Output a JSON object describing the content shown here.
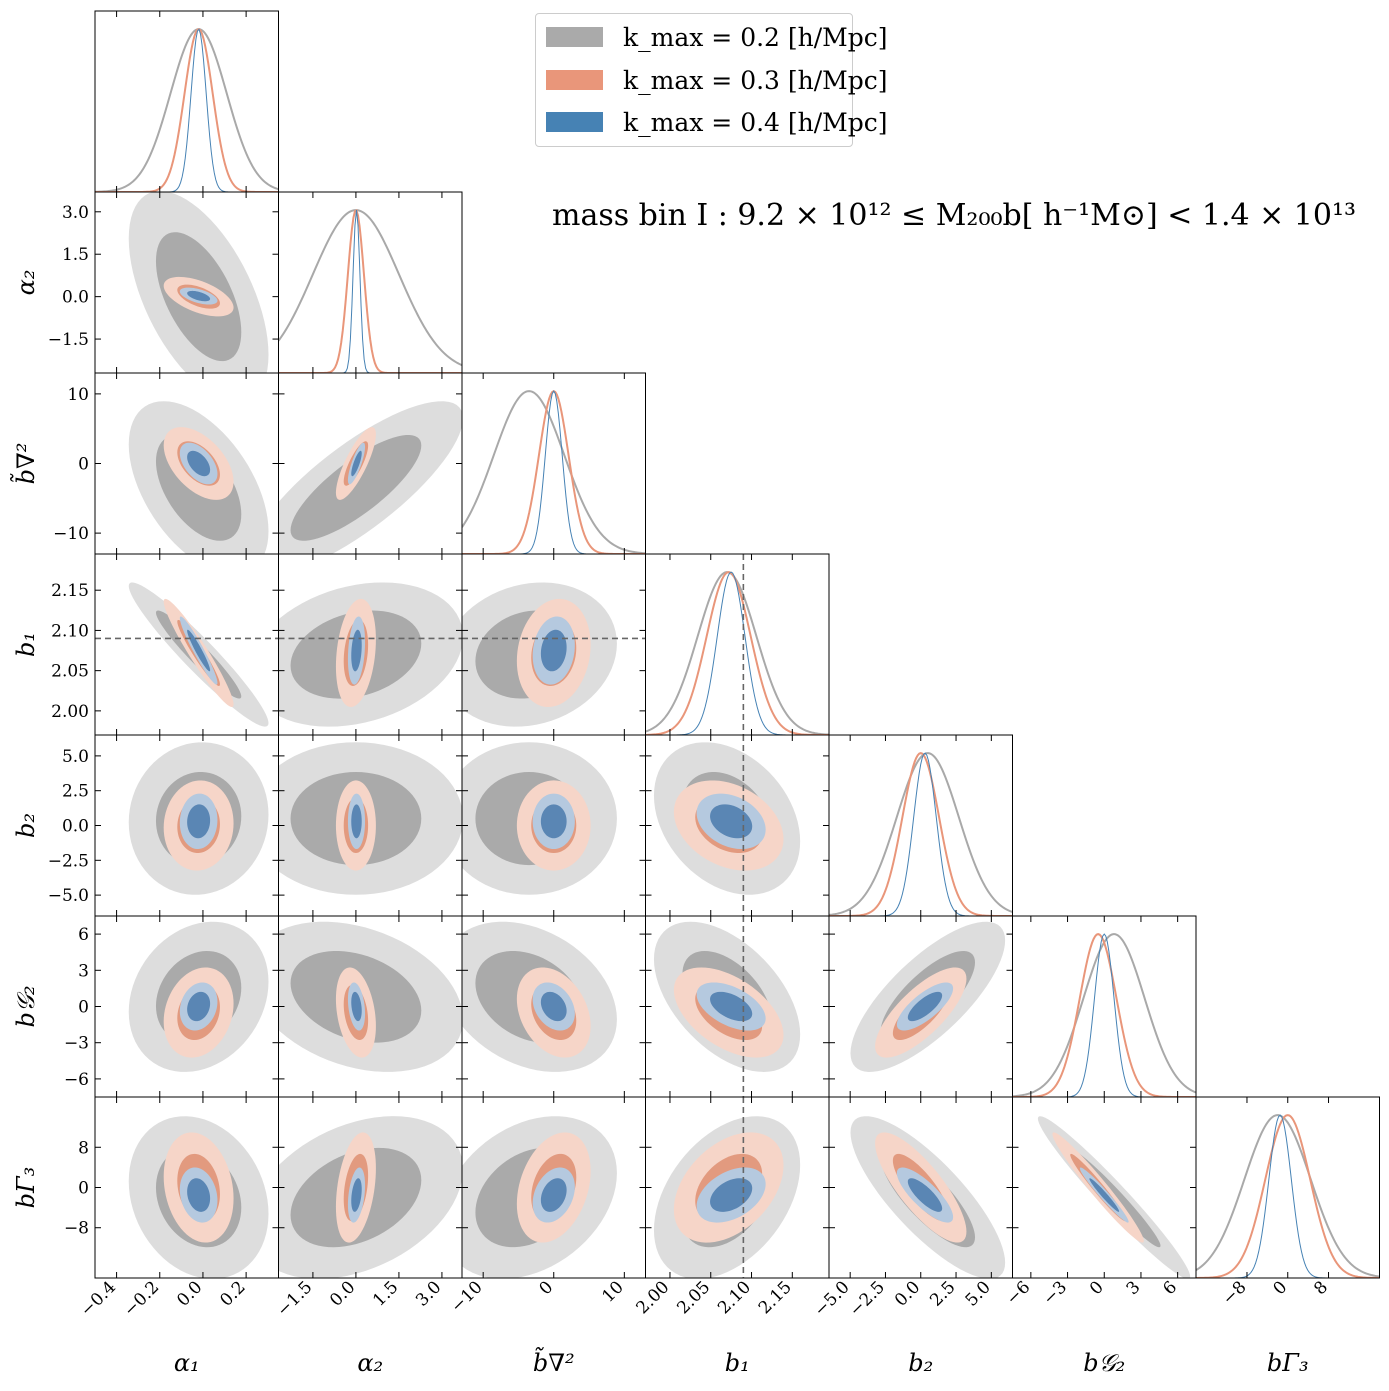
{
  "chart_data": {
    "type": "corner",
    "title": "",
    "annotation": "mass bin I : 9.2 × 10¹² ≤ M₂₀₀b[ h⁻¹M⊙] < 1.4 × 10¹³",
    "parameters": [
      {
        "key": "alpha1",
        "label": "α₁",
        "range": [
          -0.5,
          0.35
        ],
        "ticks": [
          -0.4,
          -0.2,
          0.0,
          0.2
        ],
        "tick_labels": [
          "−0.4",
          "−0.2",
          "0.0",
          "0.2"
        ],
        "truth": null
      },
      {
        "key": "alpha2",
        "label": "α₂",
        "range": [
          -2.7,
          3.7
        ],
        "ticks": [
          -1.5,
          0.0,
          1.5,
          3.0
        ],
        "tick_labels": [
          "−1.5",
          "0.0",
          "1.5",
          "3.0"
        ],
        "truth": null
      },
      {
        "key": "btilde",
        "label": "b̃∇²",
        "range": [
          -13,
          13
        ],
        "ticks": [
          -10,
          0,
          10
        ],
        "tick_labels": [
          "−10",
          "0",
          "10"
        ],
        "truth": null
      },
      {
        "key": "b1",
        "label": "b₁",
        "range": [
          1.97,
          2.195
        ],
        "ticks": [
          2.0,
          2.05,
          2.1,
          2.15
        ],
        "tick_labels": [
          "2.00",
          "2.05",
          "2.10",
          "2.15"
        ],
        "truth": 2.09
      },
      {
        "key": "b2",
        "label": "b₂",
        "range": [
          -6.5,
          6.5
        ],
        "ticks": [
          -5.0,
          -2.5,
          0.0,
          2.5,
          5.0
        ],
        "tick_labels": [
          "−5.0",
          "−2.5",
          "0.0",
          "2.5",
          "5.0"
        ],
        "truth": null
      },
      {
        "key": "bG2",
        "label": "b𝒢₂",
        "range": [
          -7.5,
          7.5
        ],
        "ticks": [
          -6,
          -3,
          0,
          3,
          6
        ],
        "tick_labels": [
          "−6",
          "−3",
          "0",
          "3",
          "6"
        ],
        "truth": null
      },
      {
        "key": "bG3",
        "label": "bΓ₃",
        "range": [
          -18,
          18
        ],
        "ticks": [
          -8,
          0,
          8
        ],
        "tick_labels": [
          "−8",
          "0",
          "8"
        ],
        "truth": null
      }
    ],
    "series": [
      {
        "name": "k_max = 0.2 [h/Mpc]",
        "color": "#a9a9a9",
        "inner_fill": "#aaaaaa",
        "outer_fill": "#dddddd",
        "mean": [
          -0.02,
          0.0,
          -3.5,
          2.07,
          0.5,
          0.8,
          -2.0
        ],
        "sigma": [
          0.13,
          1.5,
          5.0,
          0.036,
          2.2,
          2.5,
          6.5
        ]
      },
      {
        "name": "k_max = 0.3 [h/Mpc]",
        "color": "#e9967a",
        "inner_fill": "#e29a7f",
        "outer_fill": "#f6d5c8",
        "mean": [
          -0.02,
          0.0,
          0.0,
          2.072,
          0.0,
          -0.5,
          0.0
        ],
        "sigma": [
          0.065,
          0.28,
          2.1,
          0.027,
          1.3,
          1.5,
          4.4
        ]
      },
      {
        "name": "k_max = 0.4 [h/Mpc]",
        "color": "#4682b4",
        "inner_fill": "#5a86b4",
        "outer_fill": "#b5c9df",
        "mean": [
          -0.02,
          0.02,
          0.0,
          2.075,
          0.3,
          0.0,
          -1.5
        ],
        "sigma": [
          0.035,
          0.12,
          1.2,
          0.017,
          0.8,
          0.8,
          2.2
        ]
      }
    ],
    "correlations": [
      [
        1.0,
        -0.55,
        -0.5,
        -0.95,
        0.05,
        0.2,
        -0.2
      ],
      [
        -0.55,
        1.0,
        0.8,
        0.25,
        0.0,
        -0.3,
        0.35
      ],
      [
        -0.5,
        0.8,
        1.0,
        0.15,
        0.0,
        -0.3,
        0.3
      ],
      [
        -0.95,
        0.25,
        0.15,
        1.0,
        -0.3,
        -0.5,
        0.4
      ],
      [
        0.05,
        0.0,
        0.0,
        -0.3,
        1.0,
        0.75,
        -0.8
      ],
      [
        0.2,
        -0.3,
        -0.3,
        -0.5,
        0.75,
        1.0,
        -0.97
      ],
      [
        -0.2,
        0.35,
        0.3,
        0.4,
        -0.8,
        -0.97,
        1.0
      ]
    ],
    "legend_position": "top-center",
    "grid": false
  }
}
